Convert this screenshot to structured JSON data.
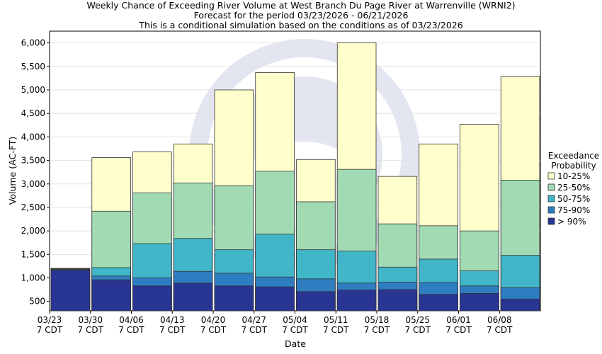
{
  "chart_data": {
    "type": "bar",
    "title": "Weekly Chance of Exceeding River Volume at West Branch Du Page River at Warrenville (WRNI2)",
    "subtitle1": "Forecast for the period 03/23/2026 - 06/21/2026",
    "subtitle2": "This is a conditional simulation based on the conditions as of 03/23/2026",
    "xlabel": "Date",
    "ylabel": "Volume (AC-FT)",
    "ylim": [
      300,
      6250
    ],
    "yticks": [
      500,
      1000,
      1500,
      2000,
      2500,
      3000,
      3500,
      4000,
      4500,
      5000,
      5500,
      6000
    ],
    "ytick_labels": [
      "500",
      "1,000",
      "1,500",
      "2,000",
      "2,500",
      "3,000",
      "3,500",
      "4,000",
      "4,500",
      "5,000",
      "5,500",
      "6,000"
    ],
    "xticks": [
      {
        "date": "03/23",
        "tz": "7 CDT"
      },
      {
        "date": "03/30",
        "tz": "7 CDT"
      },
      {
        "date": "04/06",
        "tz": "7 CDT"
      },
      {
        "date": "04/13",
        "tz": "7 CDT"
      },
      {
        "date": "04/20",
        "tz": "7 CDT"
      },
      {
        "date": "04/27",
        "tz": "7 CDT"
      },
      {
        "date": "05/04",
        "tz": "7 CDT"
      },
      {
        "date": "05/11",
        "tz": "7 CDT"
      },
      {
        "date": "05/18",
        "tz": "7 CDT"
      },
      {
        "date": "05/25",
        "tz": "7 CDT"
      },
      {
        "date": "06/01",
        "tz": "7 CDT"
      },
      {
        "date": "06/08",
        "tz": "7 CDT"
      }
    ],
    "legend": {
      "title_line1": "Exceedance",
      "title_line2": "Probability",
      "placement": "right"
    },
    "series": [
      {
        "name": "> 90%",
        "color": "#283593",
        "values": [
          1160,
          960,
          830,
          890,
          830,
          810,
          710,
          740,
          750,
          650,
          670,
          550
        ]
      },
      {
        "name": "75-90%",
        "color": "#2e7dc0",
        "values": [
          1175,
          1040,
          1000,
          1140,
          1100,
          1020,
          980,
          890,
          910,
          900,
          830,
          790
        ]
      },
      {
        "name": "50-75%",
        "color": "#40b6c8",
        "values": [
          1185,
          1220,
          1730,
          1840,
          1600,
          1930,
          1600,
          1570,
          1230,
          1400,
          1150,
          1480
        ]
      },
      {
        "name": "25-50%",
        "color": "#a2dab4",
        "values": [
          1195,
          2420,
          2810,
          3020,
          2960,
          3270,
          2620,
          3310,
          2150,
          2110,
          2000,
          3080
        ]
      },
      {
        "name": "10-25%",
        "color": "#ffffcc",
        "values": [
          1205,
          3560,
          3680,
          3850,
          5000,
          5370,
          3520,
          6000,
          3160,
          3850,
          4270,
          5280
        ]
      }
    ]
  }
}
